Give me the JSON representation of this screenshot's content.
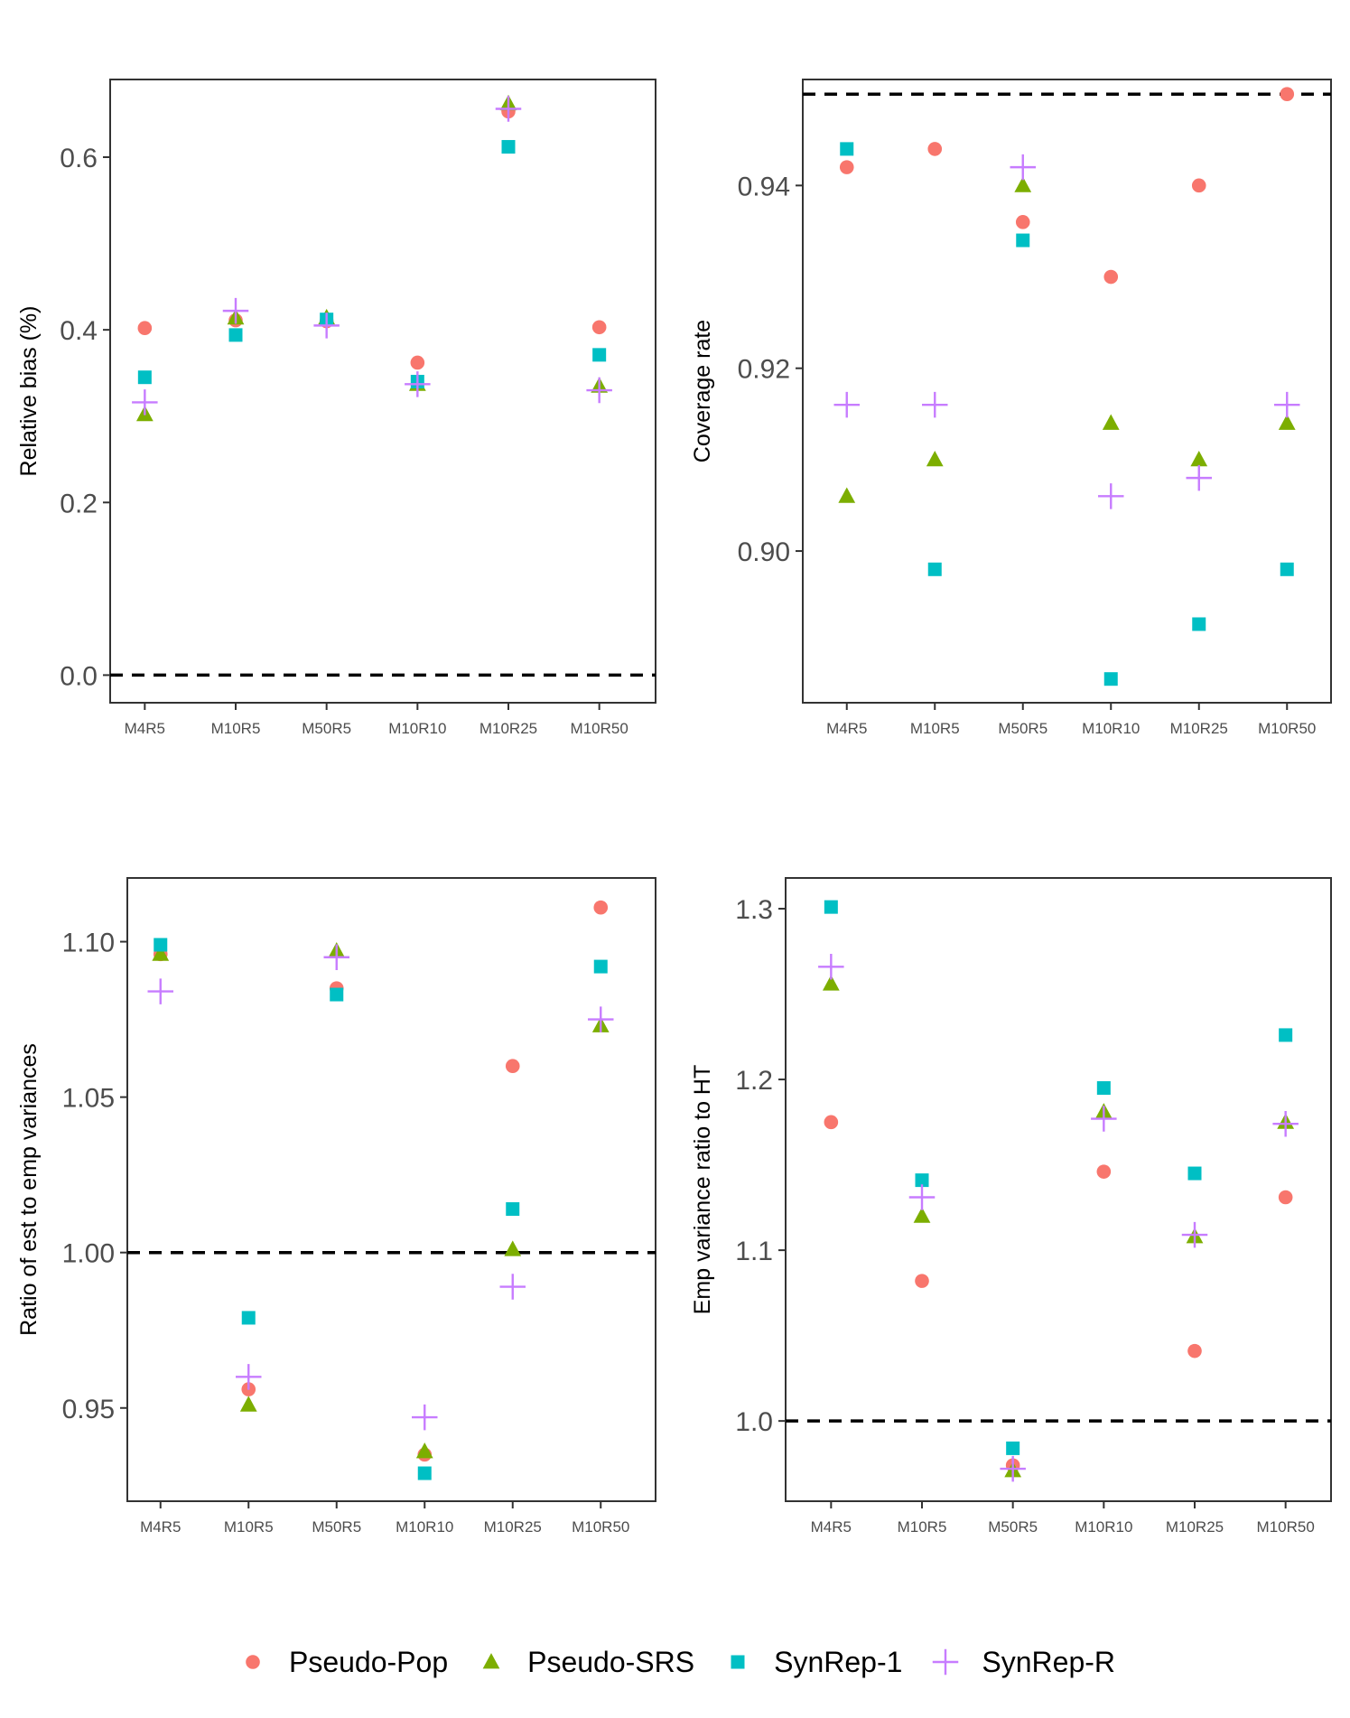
{
  "colors": {
    "Pseudo-Pop": "#F8766D",
    "Pseudo-SRS": "#7CAE00",
    "SynRep-1": "#00BFC4",
    "SynRep-R": "#C77CFF"
  },
  "legend": {
    "items": [
      {
        "name": "Pseudo-Pop",
        "shape": "circle"
      },
      {
        "name": "Pseudo-SRS",
        "shape": "triangle"
      },
      {
        "name": "SynRep-1",
        "shape": "square"
      },
      {
        "name": "SynRep-R",
        "shape": "plus"
      }
    ]
  },
  "chart_data": [
    {
      "id": "relative-bias",
      "type": "scatter",
      "title": "",
      "xlabel": "",
      "ylabel": "Relative bias (%)",
      "categories": [
        "M4R5",
        "M10R5",
        "M50R5",
        "M10R10",
        "M10R25",
        "M10R50"
      ],
      "ylim": [
        -0.032,
        0.69
      ],
      "yticks": [
        0.0,
        0.2,
        0.4,
        0.6
      ],
      "ytick_labels": [
        "0.0",
        "0.2",
        "0.4",
        "0.6"
      ],
      "reference_line": 0.0,
      "series": [
        {
          "name": "Pseudo-Pop",
          "values": [
            0.402,
            0.411,
            0.41,
            0.362,
            0.653,
            0.403
          ]
        },
        {
          "name": "Pseudo-SRS",
          "values": [
            0.302,
            0.414,
            0.414,
            0.337,
            0.662,
            0.335
          ]
        },
        {
          "name": "SynRep-1",
          "values": [
            0.345,
            0.394,
            0.412,
            0.34,
            0.612,
            0.371
          ]
        },
        {
          "name": "SynRep-R",
          "values": [
            0.316,
            0.422,
            0.405,
            0.337,
            0.656,
            0.33
          ]
        }
      ]
    },
    {
      "id": "coverage-rate",
      "type": "scatter",
      "title": "",
      "xlabel": "",
      "ylabel": "Coverage rate",
      "categories": [
        "M4R5",
        "M10R5",
        "M50R5",
        "M10R10",
        "M10R25",
        "M10R50"
      ],
      "ylim": [
        0.8834,
        0.9516
      ],
      "yticks": [
        0.9,
        0.92,
        0.94
      ],
      "ytick_labels": [
        "0.90",
        "0.92",
        "0.94"
      ],
      "reference_line": 0.95,
      "series": [
        {
          "name": "Pseudo-Pop",
          "values": [
            0.942,
            0.944,
            0.936,
            0.93,
            0.94,
            0.95
          ]
        },
        {
          "name": "Pseudo-SRS",
          "values": [
            0.906,
            0.91,
            0.94,
            0.914,
            0.91,
            0.914
          ]
        },
        {
          "name": "SynRep-1",
          "values": [
            0.944,
            0.898,
            0.934,
            0.886,
            0.892,
            0.898
          ]
        },
        {
          "name": "SynRep-R",
          "values": [
            0.916,
            0.916,
            0.942,
            0.906,
            0.908,
            0.916
          ]
        }
      ]
    },
    {
      "id": "variance-ratio",
      "type": "scatter",
      "title": "",
      "xlabel": "",
      "ylabel": "Ratio of est to emp variances",
      "categories": [
        "M4R5",
        "M10R5",
        "M50R5",
        "M10R10",
        "M10R25",
        "M10R50"
      ],
      "ylim": [
        0.92,
        1.1205
      ],
      "yticks": [
        0.95,
        1.0,
        1.05,
        1.1
      ],
      "ytick_labels": [
        "0.95",
        "1.00",
        "1.05",
        "1.10"
      ],
      "reference_line": 1.0,
      "series": [
        {
          "name": "Pseudo-Pop",
          "values": [
            1.096,
            0.956,
            1.085,
            0.935,
            1.06,
            1.111
          ]
        },
        {
          "name": "Pseudo-SRS",
          "values": [
            1.096,
            0.951,
            1.097,
            0.936,
            1.001,
            1.073
          ]
        },
        {
          "name": "SynRep-1",
          "values": [
            1.099,
            0.979,
            1.083,
            0.929,
            1.014,
            1.092
          ]
        },
        {
          "name": "SynRep-R",
          "values": [
            1.084,
            0.96,
            1.095,
            0.947,
            0.989,
            1.075
          ]
        }
      ]
    },
    {
      "id": "emp-variance-ratio",
      "type": "scatter",
      "title": "",
      "xlabel": "",
      "ylabel": "Emp variance ratio to HT",
      "categories": [
        "M4R5",
        "M10R5",
        "M50R5",
        "M10R10",
        "M10R25",
        "M10R50"
      ],
      "ylim": [
        0.953,
        1.318
      ],
      "yticks": [
        1.0,
        1.1,
        1.2,
        1.3
      ],
      "ytick_labels": [
        "1.0",
        "1.1",
        "1.2",
        "1.3"
      ],
      "reference_line": 1.0,
      "series": [
        {
          "name": "Pseudo-Pop",
          "values": [
            1.175,
            1.082,
            0.974,
            1.146,
            1.041,
            1.131
          ]
        },
        {
          "name": "Pseudo-SRS",
          "values": [
            1.256,
            1.12,
            0.971,
            1.181,
            1.108,
            1.175
          ]
        },
        {
          "name": "SynRep-1",
          "values": [
            1.301,
            1.141,
            0.984,
            1.195,
            1.145,
            1.226
          ]
        },
        {
          "name": "SynRep-R",
          "values": [
            1.266,
            1.131,
            0.972,
            1.177,
            1.109,
            1.174
          ]
        }
      ]
    }
  ]
}
